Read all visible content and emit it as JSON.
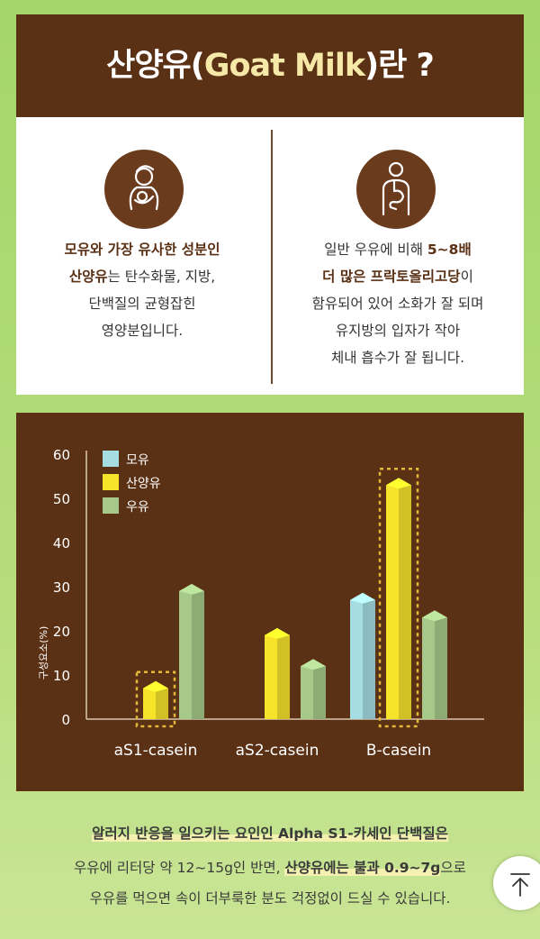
{
  "title": {
    "prefix": "산양유(",
    "en": "Goat Milk",
    "suffix": ")란 ?"
  },
  "left_card": {
    "icon": "mother-baby-icon",
    "parts": [
      {
        "t": "모유와 가장 유사한 성분인",
        "b": true
      },
      {
        "t": "산양유",
        "b": true
      },
      {
        "t": "는 탄수화물, 지방,",
        "b": false
      },
      {
        "t": "단백질의 균형잡힌",
        "b": false
      },
      {
        "t": "영양분입니다.",
        "b": false
      }
    ]
  },
  "right_card": {
    "icon": "digestive-system-icon",
    "parts": [
      {
        "t": "일반 우유에 비해 ",
        "b": false
      },
      {
        "t": "5~8배",
        "b": true
      },
      {
        "t": "더 많은 프락토올리고당",
        "b": true
      },
      {
        "t": "이",
        "b": false
      },
      {
        "t": "함유되어 있어 소화가 잘 되며",
        "b": false
      },
      {
        "t": "유지방의 입자가 작아",
        "b": false
      },
      {
        "t": "체내 흡수가 잘 됩니다.",
        "b": false
      }
    ]
  },
  "chart_data": {
    "type": "bar",
    "categories": [
      "aS1-casein",
      "aS2-casein",
      "B-casein"
    ],
    "series": [
      {
        "name": "모유",
        "values": [
          0,
          0,
          27
        ],
        "color": "#a5dde3"
      },
      {
        "name": "산양유",
        "values": [
          7,
          19,
          53
        ],
        "color": "#f7e32a"
      },
      {
        "name": "우유",
        "values": [
          29,
          12,
          23
        ],
        "color": "#a6c98a"
      }
    ],
    "ylabel": "구성요소(%)",
    "yticks": [
      0,
      10,
      20,
      30,
      40,
      50,
      60
    ],
    "ylim": [
      0,
      60
    ],
    "legend": "top-left",
    "grid": false,
    "highlight_series": "산양유",
    "highlighted_categories": [
      "aS1-casein",
      "B-casein"
    ]
  },
  "footer": {
    "line1": "알러지 반응을 일으키는 요인인 Alpha S1-카세인 단백질은",
    "line2a": "우유에 리터당 약 12~15g인 반면, ",
    "line2b": "산양유에는 불과 0.9~7g",
    "line2c": "으로",
    "line3": "우유를 먹으면 속이 더부룩한 분도 걱정없이 드실 수 있습니다."
  },
  "scroll_top": {
    "icon": "arrow-up-icon"
  }
}
